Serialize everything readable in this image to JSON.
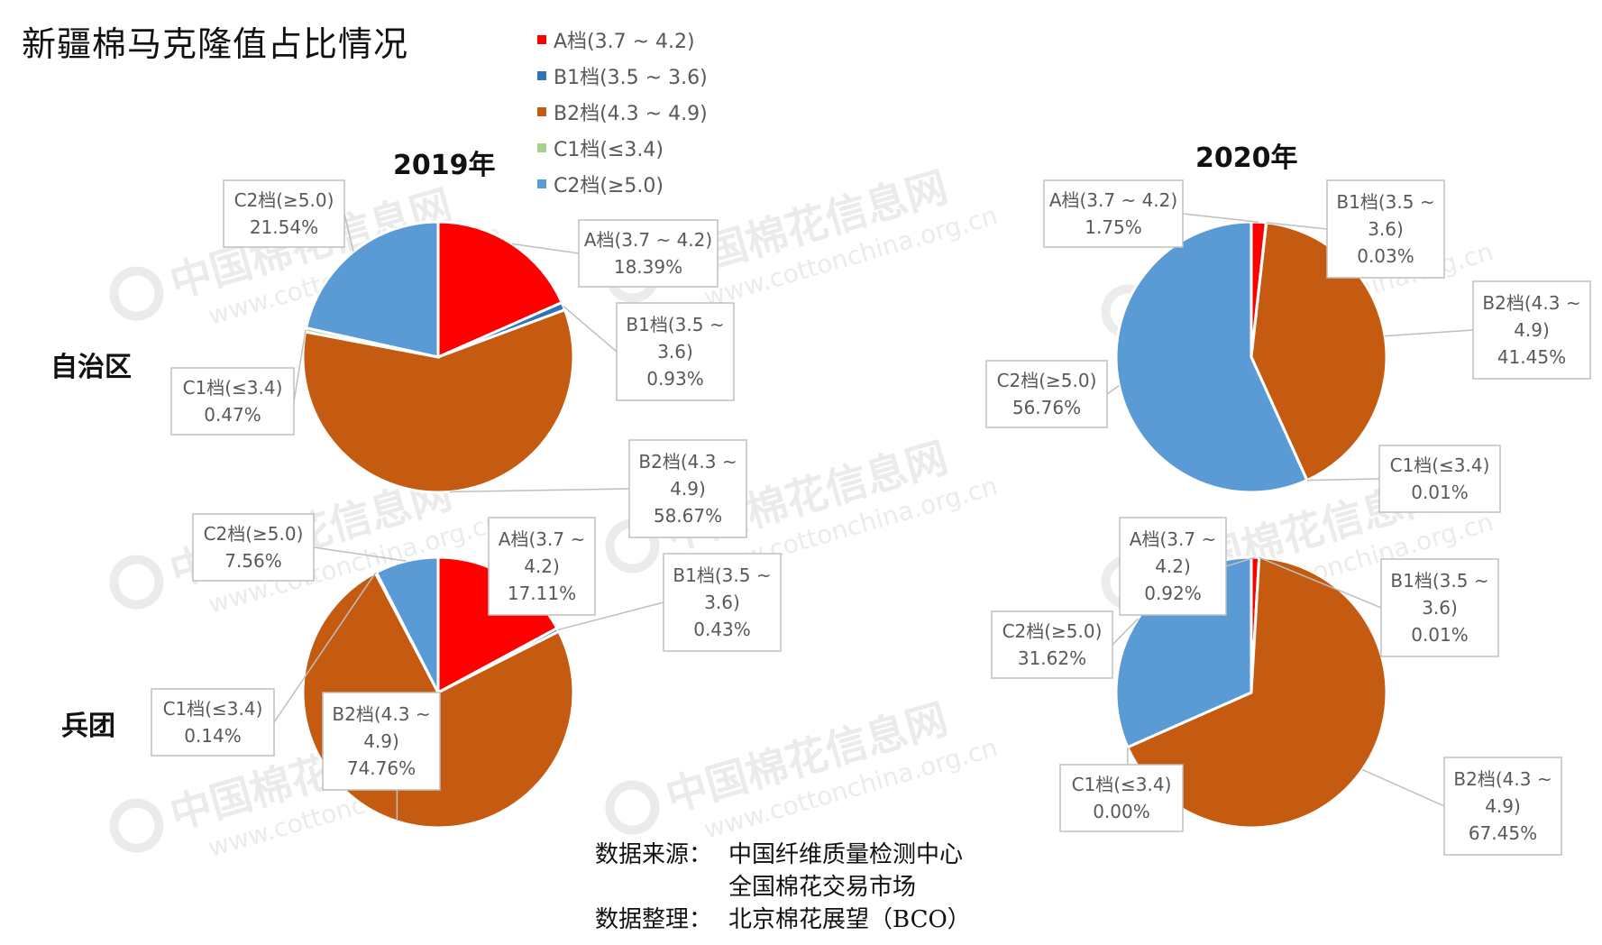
{
  "title": "新疆棉马克隆值占比情况",
  "legend": [
    {
      "label": "A档(3.7 ~ 4.2)",
      "color": "#ff0000"
    },
    {
      "label": "B1档(3.5 ~ 3.6)",
      "color": "#2e75b6"
    },
    {
      "label": "B2档(4.3 ~ 4.9)",
      "color": "#c55a11"
    },
    {
      "label": "C1档(≤3.4)",
      "color": "#a9d18e"
    },
    {
      "label": "C2档(≥5.0)",
      "color": "#5b9bd5"
    }
  ],
  "years": [
    "2019年",
    "2020年"
  ],
  "rows": [
    "自治区",
    "兵团"
  ],
  "source": {
    "key1": "数据来源：",
    "line1": "中国纤维质量检测中心",
    "line2": "全国棉花交易市场",
    "key2": "数据整理：",
    "line3": "北京棉花展望（BCO）"
  },
  "watermark": {
    "cn": "中国棉花信息网",
    "url": "www.cottonchina.org.cn"
  },
  "chart_data": [
    {
      "type": "pie",
      "year": "2019年",
      "group": "自治区",
      "slices": [
        {
          "label": "A档(3.7 ~ 4.2)",
          "lines": [
            "A档(3.7 ~ 4.2)"
          ],
          "value": 18.39,
          "value_label": "18.39%",
          "color": "#ff0000"
        },
        {
          "label": "B1档(3.5 ~ 3.6)",
          "lines": [
            "B1档(3.5 ~",
            "3.6)"
          ],
          "value": 0.93,
          "value_label": "0.93%",
          "color": "#2e75b6"
        },
        {
          "label": "B2档(4.3 ~ 4.9)",
          "lines": [
            "B2档(4.3 ~",
            "4.9)"
          ],
          "value": 58.67,
          "value_label": "58.67%",
          "color": "#c55a11"
        },
        {
          "label": "C1档(≤3.4)",
          "lines": [
            "C1档(≤3.4)"
          ],
          "value": 0.47,
          "value_label": "0.47%",
          "color": "#a9d18e"
        },
        {
          "label": "C2档(≥5.0)",
          "lines": [
            "C2档(≥5.0)"
          ],
          "value": 21.54,
          "value_label": "21.54%",
          "color": "#5b9bd5"
        }
      ]
    },
    {
      "type": "pie",
      "year": "2020年",
      "group": "自治区",
      "slices": [
        {
          "label": "A档(3.7 ~ 4.2)",
          "lines": [
            "A档(3.7 ~ 4.2)"
          ],
          "value": 1.75,
          "value_label": "1.75%",
          "color": "#ff0000"
        },
        {
          "label": "B1档(3.5 ~ 3.6)",
          "lines": [
            "B1档(3.5 ~",
            "3.6)"
          ],
          "value": 0.03,
          "value_label": "0.03%",
          "color": "#2e75b6"
        },
        {
          "label": "B2档(4.3 ~ 4.9)",
          "lines": [
            "B2档(4.3 ~",
            "4.9)"
          ],
          "value": 41.45,
          "value_label": "41.45%",
          "color": "#c55a11"
        },
        {
          "label": "C1档(≤3.4)",
          "lines": [
            "C1档(≤3.4)"
          ],
          "value": 0.01,
          "value_label": "0.01%",
          "color": "#a9d18e"
        },
        {
          "label": "C2档(≥5.0)",
          "lines": [
            "C2档(≥5.0)"
          ],
          "value": 56.76,
          "value_label": "56.76%",
          "color": "#5b9bd5"
        }
      ]
    },
    {
      "type": "pie",
      "year": "2019年",
      "group": "兵团",
      "slices": [
        {
          "label": "A档(3.7 ~ 4.2)",
          "lines": [
            "A档(3.7 ~",
            "4.2)"
          ],
          "value": 17.11,
          "value_label": "17.11%",
          "color": "#ff0000"
        },
        {
          "label": "B1档(3.5 ~ 3.6)",
          "lines": [
            "B1档(3.5 ~",
            "3.6)"
          ],
          "value": 0.43,
          "value_label": "0.43%",
          "color": "#2e75b6"
        },
        {
          "label": "B2档(4.3 ~ 4.9)",
          "lines": [
            "B2档(4.3 ~",
            "4.9)"
          ],
          "value": 74.76,
          "value_label": "74.76%",
          "color": "#c55a11"
        },
        {
          "label": "C1档(≤3.4)",
          "lines": [
            "C1档(≤3.4)"
          ],
          "value": 0.14,
          "value_label": "0.14%",
          "color": "#a9d18e"
        },
        {
          "label": "C2档(≥5.0)",
          "lines": [
            "C2档(≥5.0)"
          ],
          "value": 7.56,
          "value_label": "7.56%",
          "color": "#5b9bd5"
        }
      ]
    },
    {
      "type": "pie",
      "year": "2020年",
      "group": "兵团",
      "slices": [
        {
          "label": "A档(3.7 ~ 4.2)",
          "lines": [
            "A档(3.7 ~",
            "4.2)"
          ],
          "value": 0.92,
          "value_label": "0.92%",
          "color": "#ff0000"
        },
        {
          "label": "B1档(3.5 ~ 3.6)",
          "lines": [
            "B1档(3.5 ~",
            "3.6)"
          ],
          "value": 0.01,
          "value_label": "0.01%",
          "color": "#2e75b6"
        },
        {
          "label": "B2档(4.3 ~ 4.9)",
          "lines": [
            "B2档(4.3 ~",
            "4.9)"
          ],
          "value": 67.45,
          "value_label": "67.45%",
          "color": "#c55a11"
        },
        {
          "label": "C1档(≤3.4)",
          "lines": [
            "C1档(≤3.4)"
          ],
          "value": 0.0,
          "value_label": "0.00%",
          "color": "#a9d18e"
        },
        {
          "label": "C2档(≥5.0)",
          "lines": [
            "C2档(≥5.0)"
          ],
          "value": 31.62,
          "value_label": "31.62%",
          "color": "#5b9bd5"
        }
      ]
    }
  ]
}
